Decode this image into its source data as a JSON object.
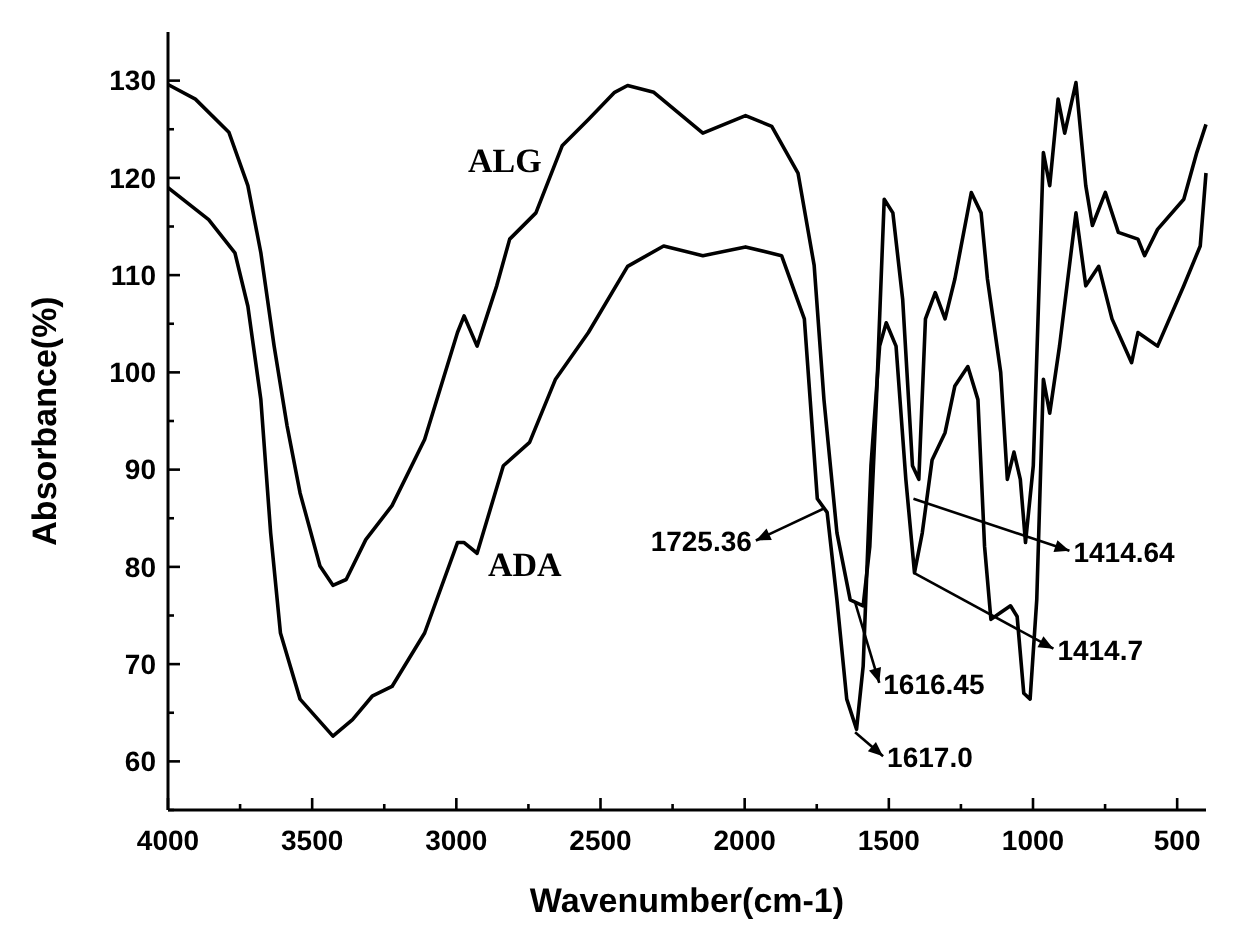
{
  "chart_data": {
    "type": "line",
    "xlabel": "Wavenumber(cm-1)",
    "ylabel": "Absorbance(%)",
    "xlim": [
      4000,
      400
    ],
    "ylim": [
      55,
      135
    ],
    "xticks": [
      4000,
      {
        "value": 3750,
        "label": null
      },
      3500,
      {
        "value": 3250,
        "label": null
      },
      3000,
      {
        "value": 2750,
        "label": null
      },
      2500,
      {
        "value": 2250,
        "label": null
      },
      2000,
      {
        "value": 1750,
        "label": null
      },
      1500,
      {
        "value": 1250,
        "label": null
      },
      1000,
      {
        "value": 750,
        "label": null
      },
      500
    ],
    "yticks": [
      {
        "value": 55,
        "label": null
      },
      60,
      {
        "value": 65,
        "label": null
      },
      70,
      {
        "value": 75,
        "label": null
      },
      80,
      {
        "value": 85,
        "label": null
      },
      90,
      {
        "value": 95,
        "label": null
      },
      100,
      {
        "value": 105,
        "label": null
      },
      110,
      {
        "value": 115,
        "label": null
      },
      120,
      {
        "value": 125,
        "label": null
      },
      130
    ],
    "grid": false,
    "marker": "none",
    "line_style": "solid",
    "series": [
      {
        "name": "ALG",
        "color": "#000000",
        "x": [
          4000,
          3905,
          3789,
          3723,
          3678,
          3632,
          3587,
          3542,
          3473,
          3428,
          3382,
          3314,
          3223,
          3110,
          2996,
          2973,
          2928,
          2860,
          2815,
          2724,
          2633,
          2542,
          2451,
          2406,
          2315,
          2145,
          1997,
          1906,
          1815,
          1759,
          1725,
          1680,
          1634,
          1589,
          1566,
          1543,
          1516,
          1486,
          1452,
          1418,
          1396,
          1373,
          1339,
          1305,
          1271,
          1214,
          1180,
          1158,
          1112,
          1089,
          1066,
          1044,
          1026,
          999,
          964,
          942,
          913,
          890,
          851,
          817,
          794,
          749,
          704,
          636,
          613,
          568,
          477,
          432,
          400
        ],
        "values": [
          129.6,
          128.1,
          124.7,
          119.2,
          112.3,
          102.7,
          94.5,
          87.6,
          80.1,
          78.1,
          78.7,
          82.8,
          86.3,
          93.1,
          104.1,
          105.8,
          102.7,
          108.9,
          113.7,
          116.4,
          123.3,
          126.0,
          128.8,
          129.5,
          128.8,
          124.6,
          126.4,
          125.3,
          120.5,
          111,
          97.2,
          83.5,
          76.6,
          76,
          82.1,
          97.2,
          117.8,
          116.4,
          107.5,
          90.4,
          89,
          105.5,
          108.2,
          105.5,
          109.6,
          118.5,
          116.4,
          109.6,
          100,
          89,
          91.8,
          89,
          82.5,
          90.4,
          122.6,
          119.2,
          128.1,
          124.6,
          129.8,
          119.2,
          115.1,
          118.5,
          114.4,
          113.7,
          112,
          114.7,
          117.8,
          122.6,
          125.5
        ]
      },
      {
        "name": "ADA",
        "color": "#000000",
        "x": [
          4000,
          3859,
          3768,
          3723,
          3678,
          3644,
          3610,
          3542,
          3428,
          3360,
          3292,
          3223,
          3110,
          2996,
          2973,
          2928,
          2837,
          2746,
          2656,
          2542,
          2406,
          2281,
          2145,
          1997,
          1872,
          1793,
          1748,
          1714,
          1680,
          1646,
          1612,
          1589,
          1562,
          1532,
          1509,
          1475,
          1441,
          1411,
          1384,
          1350,
          1305,
          1271,
          1226,
          1191,
          1168,
          1146,
          1112,
          1078,
          1055,
          1032,
          1010,
          987,
          964,
          942,
          908,
          851,
          817,
          772,
          726,
          658,
          636,
          568,
          477,
          420,
          400
        ],
        "values": [
          119,
          115.7,
          112.3,
          106.8,
          97.2,
          83.5,
          73.2,
          66.4,
          62.6,
          64.3,
          66.7,
          67.7,
          73.2,
          82.5,
          82.5,
          81.4,
          90.4,
          92.8,
          99.3,
          104.1,
          110.9,
          113,
          112,
          112.9,
          112,
          105.5,
          87,
          85.6,
          76.6,
          66.4,
          63.3,
          69.8,
          90.4,
          102.7,
          105.1,
          102.7,
          89,
          79.4,
          83.5,
          91,
          93.8,
          98.6,
          100.6,
          97.2,
          82.1,
          74.6,
          75.3,
          76,
          74.9,
          67,
          66.4,
          76.6,
          99.3,
          95.8,
          102.7,
          116.4,
          108.9,
          110.9,
          105.5,
          101,
          104.1,
          102.7,
          108.9,
          113,
          120.5
        ]
      }
    ],
    "annotations": [
      {
        "text": "1725.36",
        "x": 1725.36,
        "y": 86
      },
      {
        "text": "1616.45",
        "x": 1616.45,
        "y": 76.3
      },
      {
        "text": "1617.0",
        "x": 1617.0,
        "y": 63
      },
      {
        "text": "1414.64",
        "x": 1414.64,
        "y": 87
      },
      {
        "text": "1414.7",
        "x": 1414.7,
        "y": 79.4
      }
    ]
  }
}
